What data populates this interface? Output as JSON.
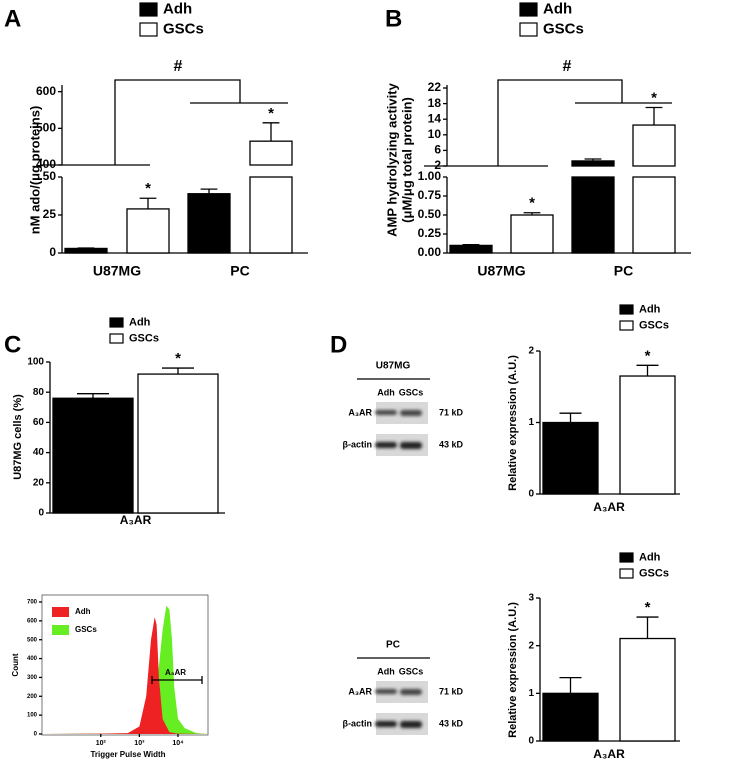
{
  "chart_data": [
    {
      "type": "bar",
      "panel_label": "A",
      "y_label": "nM ado/(μg proteins)",
      "categories": [
        "U87MG",
        "PC"
      ],
      "series": [
        {
          "name": "Adh",
          "color": "#000000",
          "values": [
            3,
            39
          ],
          "errors": [
            0.3,
            3
          ],
          "significance": [
            null,
            null
          ]
        },
        {
          "name": "GSCs",
          "color": "#ffffff",
          "values": [
            29,
            465
          ],
          "errors": [
            7,
            50
          ],
          "significance": [
            "*",
            "*"
          ]
        }
      ],
      "segments": [
        {
          "ylim": [
            0,
            50
          ],
          "yticks": [
            0,
            25,
            50
          ]
        },
        {
          "ylim": [
            400,
            610
          ],
          "yticks": [
            400,
            500,
            600
          ]
        }
      ],
      "comparison_label": "#"
    },
    {
      "type": "bar",
      "panel_label": "B",
      "y_label": [
        "AMP hydrolyzing activity",
        "(μM/μg total protein)"
      ],
      "categories": [
        "U87MG",
        "PC"
      ],
      "series": [
        {
          "name": "Adh",
          "color": "#000000",
          "values": [
            0.1,
            3.3
          ],
          "errors": [
            0.01,
            0.5
          ],
          "significance": [
            null,
            null
          ]
        },
        {
          "name": "GSCs",
          "color": "#ffffff",
          "values": [
            0.5,
            12.5
          ],
          "errors": [
            0.03,
            4.5
          ],
          "significance": [
            "*",
            "*"
          ]
        }
      ],
      "segments": [
        {
          "ylim": [
            0,
            1
          ],
          "yticks": [
            {
              "value": 0,
              "label": "0.00"
            },
            {
              "value": 0.25,
              "label": "0.25"
            },
            {
              "value": 0.5,
              "label": "0.50"
            },
            {
              "value": 0.75,
              "label": "0.75"
            },
            {
              "value": 1,
              "label": "1.00"
            }
          ]
        },
        {
          "ylim": [
            2,
            22
          ],
          "yticks": [
            2,
            6,
            10,
            14,
            18,
            22
          ]
        }
      ],
      "comparison_label": "#"
    },
    {
      "type": "bar",
      "panel_label": "C",
      "y_label": "U87MG cells (%)",
      "categories": [
        "A₃AR"
      ],
      "series": [
        {
          "name": "Adh",
          "color": "#000000",
          "values": [
            76
          ],
          "errors": [
            3
          ],
          "significance": [
            null
          ]
        },
        {
          "name": "GSCs",
          "color": "#ffffff",
          "values": [
            92
          ],
          "errors": [
            4
          ],
          "significance": [
            "*"
          ]
        }
      ],
      "ylim": [
        0,
        100
      ],
      "yticks": [
        0,
        20,
        40,
        60,
        80,
        100
      ]
    },
    {
      "type": "area",
      "x_label": "Trigger Pulse Width",
      "y_label": "Count",
      "xscale": "log",
      "xlim": [
        3,
        60000
      ],
      "ylim": [
        0,
        700
      ],
      "xticks": [
        {
          "value": 100,
          "label": "10²"
        },
        {
          "value": 1000,
          "label": "10³"
        },
        {
          "value": 10000,
          "label": "10⁴"
        }
      ],
      "yticks": [
        0,
        100,
        200,
        300,
        400,
        500,
        600,
        700
      ],
      "gate_label": "A₃AR",
      "series": [
        {
          "name": "Adh",
          "color": "#ee2222",
          "x": [
            3,
            100,
            500,
            1000,
            1500,
            2000,
            2500,
            2800,
            3200,
            4000,
            6000,
            10000,
            60000
          ],
          "values": [
            0,
            2,
            5,
            40,
            200,
            500,
            620,
            580,
            300,
            80,
            10,
            2,
            0
          ]
        },
        {
          "name": "GSCs",
          "color": "#66ee22",
          "x": [
            3,
            500,
            1000,
            2000,
            3000,
            4000,
            5000,
            6000,
            7000,
            8000,
            10000,
            15000,
            20000,
            30000,
            60000
          ],
          "values": [
            0,
            3,
            15,
            80,
            300,
            550,
            680,
            660,
            500,
            250,
            80,
            30,
            20,
            5,
            0
          ]
        }
      ]
    },
    {
      "type": "bar",
      "panel_label": "D",
      "y_label": "Relative expression (A.U.)",
      "categories": [
        "A₃AR"
      ],
      "series": [
        {
          "name": "Adh",
          "color": "#000000",
          "values": [
            1
          ],
          "errors": [
            0.13
          ],
          "significance": [
            null
          ]
        },
        {
          "name": "GSCs",
          "color": "#ffffff",
          "values": [
            1.65
          ],
          "errors": [
            0.15
          ],
          "significance": [
            "*"
          ]
        }
      ],
      "ylim": [
        0,
        2
      ],
      "yticks": [
        0,
        1,
        2
      ]
    },
    {
      "type": "bar",
      "y_label": "Relative expression (A.U.)",
      "categories": [
        "A₃AR"
      ],
      "series": [
        {
          "name": "Adh",
          "color": "#000000",
          "values": [
            1
          ],
          "errors": [
            0.33
          ],
          "significance": [
            null
          ]
        },
        {
          "name": "GSCs",
          "color": "#ffffff",
          "values": [
            2.15
          ],
          "errors": [
            0.45
          ],
          "significance": [
            "*"
          ]
        }
      ],
      "ylim": [
        0,
        3
      ],
      "yticks": [
        0,
        1,
        2,
        3
      ]
    }
  ],
  "blots": [
    {
      "title": "U87MG",
      "lanes": [
        "Adh",
        "GSCs"
      ],
      "rows": [
        {
          "protein": "A₃AR",
          "size": "71 kD"
        },
        {
          "protein": "β-actin",
          "size": "43 kD"
        }
      ]
    },
    {
      "title": "PC",
      "lanes": [
        "Adh",
        "GSCs"
      ],
      "rows": [
        {
          "protein": "A₃AR",
          "size": "71 kD"
        },
        {
          "protein": "β-actin",
          "size": "43 kD"
        }
      ]
    }
  ]
}
